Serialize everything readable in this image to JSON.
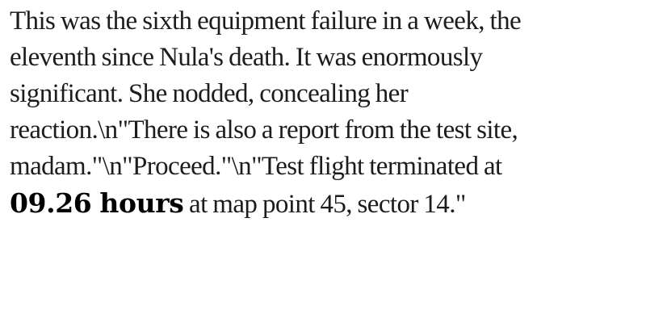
{
  "document": {
    "lines": [
      "This was the sixth equipment failure in a week, the",
      "eleventh since Nula's death. It was enormously",
      "significant. She nodded, concealing her",
      "reaction.\\n\"There is also a report from the test site,",
      "madam.\"\\n\"Proceed.\"\\n\"Test flight terminated at"
    ],
    "last_line": {
      "bold": "09.26 hours",
      "rest": " at map point 45, sector 14.\""
    }
  }
}
